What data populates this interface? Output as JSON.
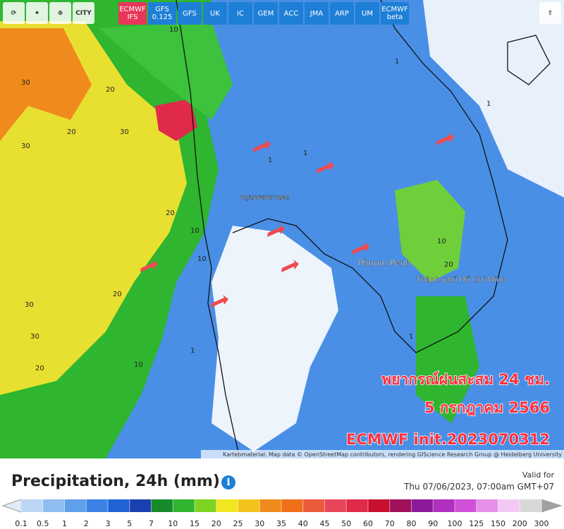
{
  "toolbar": {
    "city_button": "CITY",
    "models": [
      {
        "label": "ECMWF IFS",
        "active": true
      },
      {
        "label": "GFS 0.125",
        "active": false
      },
      {
        "label": "GFS",
        "active": false
      },
      {
        "label": "UK",
        "active": false
      },
      {
        "label": "IC",
        "active": false
      },
      {
        "label": "GEM",
        "active": false
      },
      {
        "label": "ACC",
        "active": false
      },
      {
        "label": "JMA",
        "active": false
      },
      {
        "label": "ARP",
        "active": false
      },
      {
        "label": "UM",
        "active": false
      },
      {
        "label": "ECMWF beta",
        "active": false
      }
    ]
  },
  "map": {
    "place_labels": [
      "กรุงเทพมหานคร",
      "Phnom Penh",
      "Thành phố Hồ Chí Minh"
    ],
    "contour_labels": [
      "30",
      "20",
      "30",
      "20",
      "30",
      "20",
      "30",
      "20",
      "10",
      "10",
      "1",
      "1",
      "1",
      "10",
      "10",
      "20",
      "10",
      "1",
      "1",
      "30",
      "20",
      "1"
    ],
    "overlay": [
      "พยากรณ์ฝนสะสม 24 ชม.",
      "5 กรกฎาคม 2566",
      "ECMWF init.2023070312"
    ],
    "attribution": "Kartenmaterial: Map data © OpenStreetMap contributors, rendering GIScience Research Group @ Heidelberg University"
  },
  "footer": {
    "title": "Precipitation, 24h (mm)",
    "valid_label": "Valid for",
    "valid_time": "Thu 07/06/2023, 07:00am GMT+07"
  },
  "legend": {
    "ticks": [
      0.1,
      0.5,
      1,
      2,
      3,
      5,
      7,
      10,
      15,
      20,
      25,
      30,
      35,
      40,
      45,
      50,
      60,
      70,
      80,
      90,
      100,
      125,
      150,
      200,
      300
    ],
    "colors": [
      "#bcd6f5",
      "#8fbdf0",
      "#5fa0ea",
      "#3a82e3",
      "#1f62d6",
      "#1a3fb0",
      "#178a2c",
      "#2fb52f",
      "#7ed321",
      "#f1e620",
      "#f3c21c",
      "#f08a1c",
      "#f0701a",
      "#ec5a3c",
      "#e8465a",
      "#e02a4a",
      "#c8102e",
      "#a0105a",
      "#8a1a9a",
      "#b030c0",
      "#d050d8",
      "#e890e8",
      "#f4c8f4",
      "#d8d8d8"
    ],
    "below_color": "#e0ecfa",
    "above_color": "#a0a0a0"
  }
}
